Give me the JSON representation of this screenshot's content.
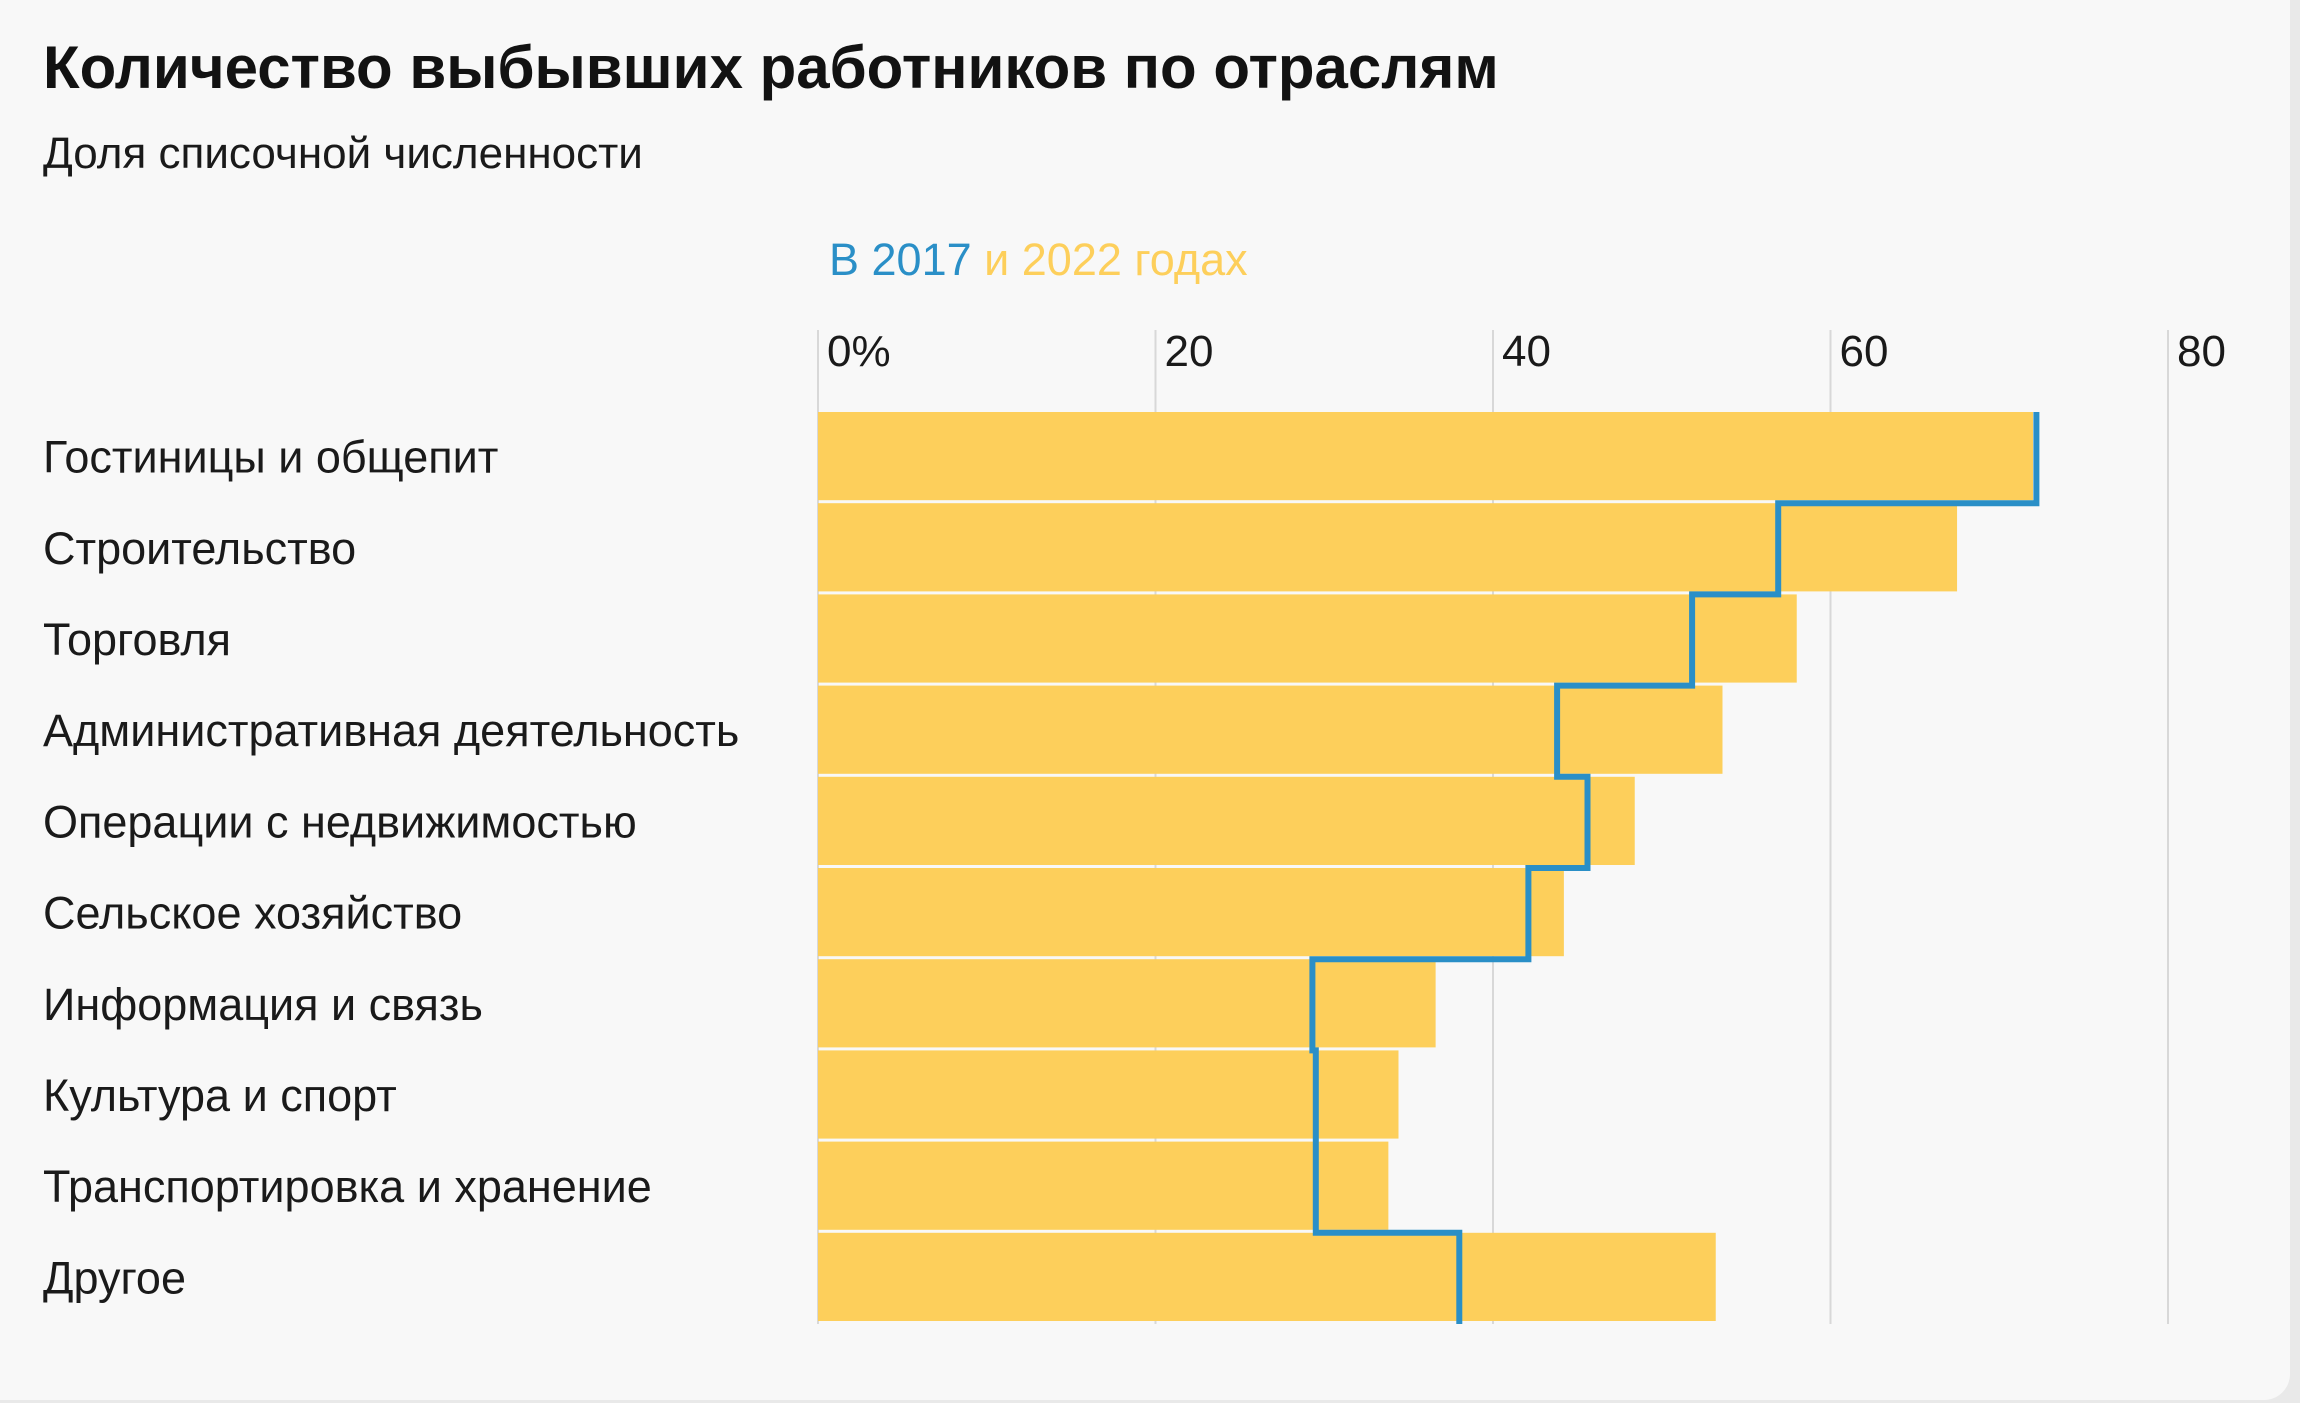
{
  "colors": {
    "background": "#f8f8f8",
    "bar_2022": "#fdcf5b",
    "line_2017": "#2a8fc7",
    "grid": "#d8d8d8",
    "text": "#1a1a1a"
  },
  "chart_data": {
    "type": "bar",
    "orientation": "horizontal",
    "title": "Количество выбывших работников по отраслям",
    "subtitle": "Доля списочной численности",
    "legend": {
      "part1": "В 2017",
      "part2": " и 2022 годах"
    },
    "categories": [
      "Гостиницы и общепит",
      "Строительство",
      "Торговля",
      "Административная деятельность",
      "Операции с недвижимостью",
      "Сельское хозяйство",
      "Информация и связь",
      "Культура и спорт",
      "Транспортировка и хранение",
      "Другое"
    ],
    "series": [
      {
        "name": "2022",
        "style": "bars",
        "values": [
          72.0,
          67.5,
          58.0,
          53.6,
          48.4,
          44.2,
          36.6,
          34.4,
          33.8,
          53.2
        ]
      },
      {
        "name": "2017",
        "style": "step-line",
        "values": [
          72.2,
          56.9,
          51.8,
          43.8,
          45.6,
          42.1,
          29.3,
          29.5,
          29.5,
          38.0
        ]
      }
    ],
    "xlim": [
      0,
      80
    ],
    "x_ticks": [
      0,
      20,
      40,
      60,
      80
    ],
    "x_tick_labels": [
      "0%",
      "20",
      "40",
      "60",
      "80"
    ],
    "x_axis_position": "top",
    "grid": true,
    "legend_position": "top"
  }
}
